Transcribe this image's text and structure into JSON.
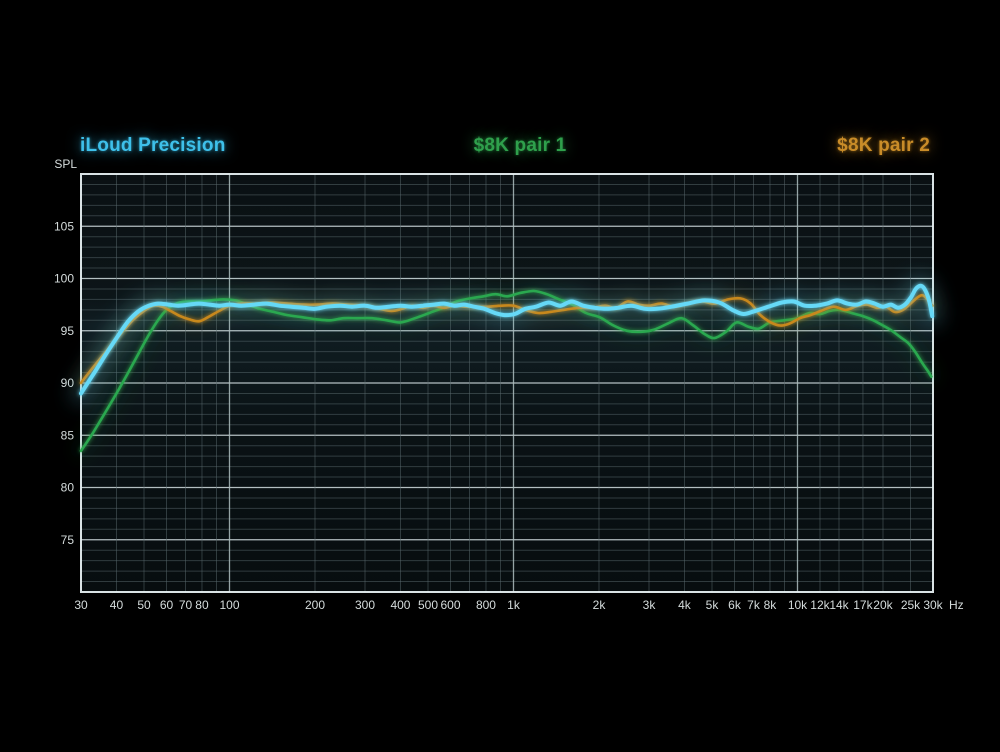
{
  "page": {
    "background": "#000000"
  },
  "legend": [
    {
      "id": "iloud",
      "label": "iLoud Precision",
      "color": "#3ec0ea"
    },
    {
      "id": "pair1",
      "label": "$8K pair 1",
      "color": "#2fa04c"
    },
    {
      "id": "pair2",
      "label": "$8K pair 2",
      "color": "#c98c28"
    }
  ],
  "chart_data": {
    "type": "line",
    "title": "",
    "ylabel": "SPL",
    "x_unit": "Hz",
    "x_scale": "log",
    "xlim": [
      30,
      30000
    ],
    "ylim": [
      70,
      110
    ],
    "y_major_ticks": [
      75,
      80,
      85,
      90,
      95,
      100,
      105
    ],
    "y_minor_step": 1,
    "x_gridlines": [
      40,
      50,
      60,
      70,
      80,
      90,
      100,
      200,
      300,
      400,
      500,
      600,
      700,
      800,
      900,
      1000,
      2000,
      3000,
      4000,
      5000,
      6000,
      7000,
      8000,
      9000,
      10000,
      12000,
      14000,
      17000,
      20000,
      25000
    ],
    "x_major_gridlines": [
      100,
      1000,
      10000
    ],
    "x_tick_labels": [
      {
        "f": 30,
        "l": "30"
      },
      {
        "f": 40,
        "l": "40"
      },
      {
        "f": 50,
        "l": "50"
      },
      {
        "f": 60,
        "l": "60"
      },
      {
        "f": 70,
        "l": "70"
      },
      {
        "f": 80,
        "l": "80"
      },
      {
        "f": 100,
        "l": "100"
      },
      {
        "f": 200,
        "l": "200"
      },
      {
        "f": 300,
        "l": "300"
      },
      {
        "f": 400,
        "l": "400"
      },
      {
        "f": 500,
        "l": "500"
      },
      {
        "f": 600,
        "l": "600"
      },
      {
        "f": 800,
        "l": "800"
      },
      {
        "f": 1000,
        "l": "1k"
      },
      {
        "f": 2000,
        "l": "2k"
      },
      {
        "f": 3000,
        "l": "3k"
      },
      {
        "f": 4000,
        "l": "4k"
      },
      {
        "f": 5000,
        "l": "5k"
      },
      {
        "f": 6000,
        "l": "6k"
      },
      {
        "f": 7000,
        "l": "7k"
      },
      {
        "f": 8000,
        "l": "8k"
      },
      {
        "f": 10000,
        "l": "10k"
      },
      {
        "f": 12000,
        "l": "12k"
      },
      {
        "f": 14000,
        "l": "14k"
      },
      {
        "f": 17000,
        "l": "17k"
      },
      {
        "f": 20000,
        "l": "20k"
      },
      {
        "f": 25000,
        "l": "25k"
      },
      {
        "f": 30000,
        "l": "30k"
      }
    ],
    "grid_colors": {
      "minor": "#5a6a6e",
      "major_y": "#d2dee0",
      "major_x": "#aebebf",
      "border": "#e6eff1",
      "tick_text": "#d5dcdc"
    },
    "series": [
      {
        "name": "$8K pair 1",
        "color": "#2ca84f",
        "width": 2.6,
        "points": [
          [
            30,
            83.5
          ],
          [
            33,
            85.2
          ],
          [
            36,
            86.9
          ],
          [
            40,
            89.0
          ],
          [
            44,
            91.0
          ],
          [
            48,
            92.9
          ],
          [
            52,
            94.6
          ],
          [
            56,
            96.0
          ],
          [
            60,
            97.0
          ],
          [
            65,
            97.6
          ],
          [
            70,
            97.8
          ],
          [
            78,
            97.8
          ],
          [
            86,
            97.9
          ],
          [
            95,
            98.0
          ],
          [
            105,
            97.9
          ],
          [
            116,
            97.5
          ],
          [
            128,
            97.1
          ],
          [
            143,
            96.8
          ],
          [
            160,
            96.5
          ],
          [
            180,
            96.3
          ],
          [
            202,
            96.1
          ],
          [
            226,
            96.0
          ],
          [
            252,
            96.2
          ],
          [
            282,
            96.2
          ],
          [
            318,
            96.2
          ],
          [
            358,
            96.0
          ],
          [
            400,
            95.8
          ],
          [
            450,
            96.2
          ],
          [
            505,
            96.7
          ],
          [
            565,
            97.2
          ],
          [
            630,
            97.8
          ],
          [
            705,
            98.1
          ],
          [
            785,
            98.3
          ],
          [
            865,
            98.5
          ],
          [
            950,
            98.3
          ],
          [
            1050,
            98.6
          ],
          [
            1180,
            98.8
          ],
          [
            1310,
            98.5
          ],
          [
            1450,
            98.0
          ],
          [
            1610,
            97.5
          ],
          [
            1800,
            96.7
          ],
          [
            2010,
            96.3
          ],
          [
            2250,
            95.5
          ],
          [
            2510,
            95.0
          ],
          [
            2800,
            94.9
          ],
          [
            3120,
            95.1
          ],
          [
            3500,
            95.7
          ],
          [
            3900,
            96.2
          ],
          [
            4300,
            95.5
          ],
          [
            4700,
            94.7
          ],
          [
            5100,
            94.3
          ],
          [
            5600,
            94.9
          ],
          [
            6100,
            95.8
          ],
          [
            6700,
            95.4
          ],
          [
            7300,
            95.2
          ],
          [
            8000,
            95.8
          ],
          [
            9000,
            96.0
          ],
          [
            10000,
            96.2
          ],
          [
            11000,
            96.7
          ],
          [
            12000,
            96.6
          ],
          [
            13000,
            96.9
          ],
          [
            14100,
            97.0
          ],
          [
            15500,
            96.7
          ],
          [
            17000,
            96.4
          ],
          [
            18500,
            96.0
          ],
          [
            20000,
            95.5
          ],
          [
            21500,
            95.0
          ],
          [
            23000,
            94.4
          ],
          [
            24600,
            93.8
          ],
          [
            26100,
            92.9
          ],
          [
            27500,
            91.9
          ],
          [
            28700,
            91.2
          ],
          [
            29600,
            90.6
          ]
        ]
      },
      {
        "name": "$8K pair 2",
        "color": "#c8881f",
        "width": 2.6,
        "points": [
          [
            30,
            90.0
          ],
          [
            32,
            91.0
          ],
          [
            35,
            92.3
          ],
          [
            38,
            93.5
          ],
          [
            42,
            94.9
          ],
          [
            46,
            96.1
          ],
          [
            50,
            96.9
          ],
          [
            54,
            97.4
          ],
          [
            58,
            97.3
          ],
          [
            62,
            96.9
          ],
          [
            67,
            96.4
          ],
          [
            72,
            96.1
          ],
          [
            78,
            95.9
          ],
          [
            84,
            96.3
          ],
          [
            92,
            96.9
          ],
          [
            100,
            97.4
          ],
          [
            111,
            97.6
          ],
          [
            125,
            97.6
          ],
          [
            140,
            97.7
          ],
          [
            160,
            97.6
          ],
          [
            182,
            97.5
          ],
          [
            205,
            97.5
          ],
          [
            231,
            97.6
          ],
          [
            260,
            97.5
          ],
          [
            300,
            97.4
          ],
          [
            338,
            97.1
          ],
          [
            372,
            96.9
          ],
          [
            405,
            97.1
          ],
          [
            440,
            97.4
          ],
          [
            480,
            97.2
          ],
          [
            522,
            97.4
          ],
          [
            570,
            97.2
          ],
          [
            620,
            97.4
          ],
          [
            680,
            97.3
          ],
          [
            745,
            97.3
          ],
          [
            820,
            97.3
          ],
          [
            905,
            97.4
          ],
          [
            1000,
            97.4
          ],
          [
            1100,
            97.0
          ],
          [
            1220,
            96.7
          ],
          [
            1350,
            96.8
          ],
          [
            1500,
            97.0
          ],
          [
            1700,
            97.2
          ],
          [
            1900,
            97.2
          ],
          [
            2100,
            97.4
          ],
          [
            2300,
            97.2
          ],
          [
            2520,
            97.8
          ],
          [
            2760,
            97.5
          ],
          [
            3020,
            97.4
          ],
          [
            3320,
            97.6
          ],
          [
            3700,
            97.3
          ],
          [
            4120,
            97.6
          ],
          [
            4600,
            97.8
          ],
          [
            5120,
            97.6
          ],
          [
            5700,
            98.0
          ],
          [
            6300,
            98.1
          ],
          [
            6850,
            97.6
          ],
          [
            7400,
            96.5
          ],
          [
            8050,
            95.8
          ],
          [
            8700,
            95.5
          ],
          [
            9400,
            95.7
          ],
          [
            10200,
            96.2
          ],
          [
            11100,
            96.5
          ],
          [
            12100,
            96.9
          ],
          [
            13400,
            97.3
          ],
          [
            14800,
            97.0
          ],
          [
            16300,
            97.4
          ],
          [
            17600,
            97.5
          ],
          [
            19000,
            97.2
          ],
          [
            20500,
            97.3
          ],
          [
            22000,
            96.8
          ],
          [
            23500,
            97.0
          ],
          [
            25000,
            97.6
          ],
          [
            26500,
            98.2
          ],
          [
            27500,
            98.4
          ],
          [
            28500,
            98.1
          ],
          [
            29300,
            97.6
          ],
          [
            29900,
            97.4
          ]
        ]
      },
      {
        "name": "iLoud Precision",
        "color": "#66d9f7",
        "width": 4,
        "points": [
          [
            30,
            89.0
          ],
          [
            32,
            90.2
          ],
          [
            34,
            91.3
          ],
          [
            37,
            92.9
          ],
          [
            40,
            94.3
          ],
          [
            44,
            95.9
          ],
          [
            48,
            96.9
          ],
          [
            52,
            97.4
          ],
          [
            56,
            97.6
          ],
          [
            61,
            97.5
          ],
          [
            66,
            97.4
          ],
          [
            72,
            97.5
          ],
          [
            78,
            97.6
          ],
          [
            85,
            97.5
          ],
          [
            92,
            97.4
          ],
          [
            100,
            97.5
          ],
          [
            110,
            97.4
          ],
          [
            122,
            97.5
          ],
          [
            135,
            97.6
          ],
          [
            150,
            97.4
          ],
          [
            165,
            97.3
          ],
          [
            182,
            97.2
          ],
          [
            200,
            97.1
          ],
          [
            220,
            97.3
          ],
          [
            245,
            97.4
          ],
          [
            270,
            97.3
          ],
          [
            300,
            97.4
          ],
          [
            330,
            97.2
          ],
          [
            365,
            97.3
          ],
          [
            400,
            97.4
          ],
          [
            440,
            97.3
          ],
          [
            480,
            97.4
          ],
          [
            525,
            97.5
          ],
          [
            570,
            97.6
          ],
          [
            620,
            97.4
          ],
          [
            670,
            97.5
          ],
          [
            725,
            97.3
          ],
          [
            790,
            97.1
          ],
          [
            860,
            96.7
          ],
          [
            930,
            96.5
          ],
          [
            1010,
            96.6
          ],
          [
            1100,
            97.1
          ],
          [
            1200,
            97.3
          ],
          [
            1330,
            97.7
          ],
          [
            1460,
            97.4
          ],
          [
            1600,
            97.8
          ],
          [
            1760,
            97.4
          ],
          [
            1930,
            97.2
          ],
          [
            2120,
            97.1
          ],
          [
            2330,
            97.2
          ],
          [
            2600,
            97.4
          ],
          [
            2900,
            97.1
          ],
          [
            3200,
            97.1
          ],
          [
            3600,
            97.3
          ],
          [
            4100,
            97.6
          ],
          [
            4700,
            97.9
          ],
          [
            5300,
            97.7
          ],
          [
            5900,
            97.0
          ],
          [
            6450,
            96.6
          ],
          [
            7100,
            96.9
          ],
          [
            7900,
            97.3
          ],
          [
            8800,
            97.7
          ],
          [
            9700,
            97.8
          ],
          [
            10600,
            97.4
          ],
          [
            11600,
            97.4
          ],
          [
            12700,
            97.6
          ],
          [
            13800,
            97.9
          ],
          [
            15000,
            97.6
          ],
          [
            16200,
            97.5
          ],
          [
            17400,
            97.8
          ],
          [
            18700,
            97.6
          ],
          [
            20000,
            97.3
          ],
          [
            21300,
            97.5
          ],
          [
            22600,
            97.2
          ],
          [
            23900,
            97.5
          ],
          [
            25100,
            98.2
          ],
          [
            26100,
            99.0
          ],
          [
            27100,
            99.3
          ],
          [
            28000,
            99.0
          ],
          [
            29000,
            98.0
          ],
          [
            29800,
            96.4
          ]
        ]
      }
    ]
  }
}
